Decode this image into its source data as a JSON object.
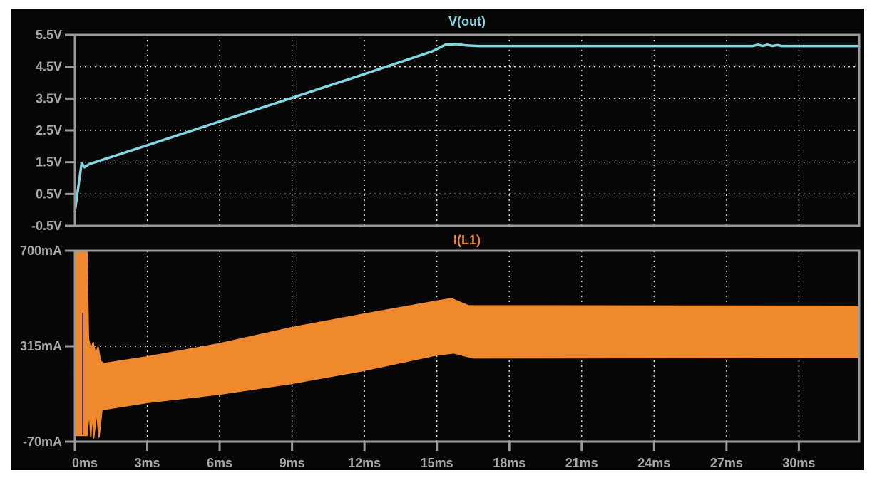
{
  "window": {
    "background": "#ffffff",
    "canvas_color": "#060606",
    "border_color": "#999999",
    "tick_color": "#999999",
    "grid_color": "#d8d8d8",
    "label_color": "#a8a8a8"
  },
  "chart_data": [
    {
      "type": "line",
      "title": "V(out)",
      "color": "#82d6e0",
      "x_unit": "ms",
      "y_unit": "V",
      "xlim": [
        0,
        32.5
      ],
      "ylim": [
        -0.5,
        5.5
      ],
      "x_ticks_ms": [
        0,
        3,
        6,
        9,
        12,
        15,
        18,
        21,
        24,
        27,
        30
      ],
      "x_tick_labels": [
        "0ms",
        "3ms",
        "6ms",
        "9ms",
        "12ms",
        "15ms",
        "18ms",
        "21ms",
        "24ms",
        "27ms",
        "30ms"
      ],
      "y_ticks": [
        5.5,
        4.5,
        3.5,
        2.5,
        1.5,
        0.5,
        -0.5
      ],
      "y_tick_labels": [
        "5.5V",
        "4.5V",
        "3.5V",
        "2.5V",
        "1.5V",
        "0.5V",
        "-0.5V"
      ],
      "grid": true,
      "legend_position": "top-center-title",
      "points": [
        [
          0,
          -0.05
        ],
        [
          0.28,
          1.47
        ],
        [
          0.4,
          1.34
        ],
        [
          0.6,
          1.44
        ],
        [
          3,
          2.03
        ],
        [
          6,
          2.78
        ],
        [
          9,
          3.52
        ],
        [
          12,
          4.27
        ],
        [
          14.8,
          4.98
        ],
        [
          15.35,
          5.19
        ],
        [
          15.8,
          5.21
        ],
        [
          16.2,
          5.17
        ],
        [
          16.7,
          5.15
        ],
        [
          28.1,
          5.15
        ],
        [
          28.3,
          5.19
        ],
        [
          28.5,
          5.15
        ],
        [
          28.7,
          5.19
        ],
        [
          28.9,
          5.15
        ],
        [
          29.1,
          5.18
        ],
        [
          29.3,
          5.15
        ],
        [
          32.5,
          5.15
        ]
      ]
    },
    {
      "type": "band",
      "title": "I(L1)",
      "color": "#f0892d",
      "x_unit": "ms",
      "y_unit": "mA",
      "xlim": [
        0,
        32.5
      ],
      "ylim": [
        -70,
        700
      ],
      "y_ticks": [
        700,
        315,
        -70
      ],
      "y_tick_labels": [
        "700mA",
        "315mA",
        "-70mA"
      ],
      "grid": true,
      "upper_envelope": [
        [
          0,
          0
        ],
        [
          0.06,
          700
        ],
        [
          0.5,
          700
        ],
        [
          0.56,
          345
        ],
        [
          0.66,
          300
        ],
        [
          0.76,
          330
        ],
        [
          0.86,
          280
        ],
        [
          0.96,
          312
        ],
        [
          1.06,
          255
        ],
        [
          1.2,
          245
        ],
        [
          3,
          272
        ],
        [
          6,
          325
        ],
        [
          9,
          390
        ],
        [
          12,
          445
        ],
        [
          15,
          497
        ],
        [
          15.6,
          507
        ],
        [
          16.3,
          478
        ],
        [
          32.5,
          476
        ]
      ],
      "lower_envelope": [
        [
          0,
          0
        ],
        [
          0.06,
          -45
        ],
        [
          0.5,
          -45
        ],
        [
          0.6,
          60
        ],
        [
          0.66,
          -50
        ],
        [
          0.72,
          58
        ],
        [
          0.78,
          -55
        ],
        [
          0.9,
          55
        ],
        [
          1.0,
          -52
        ],
        [
          1.12,
          58
        ],
        [
          1.3,
          62
        ],
        [
          3,
          88
        ],
        [
          6,
          122
        ],
        [
          9,
          165
        ],
        [
          12,
          218
        ],
        [
          15,
          280
        ],
        [
          15.7,
          288
        ],
        [
          16.5,
          268
        ],
        [
          32.5,
          270
        ]
      ],
      "spike_gap_ms": 0.33
    }
  ]
}
